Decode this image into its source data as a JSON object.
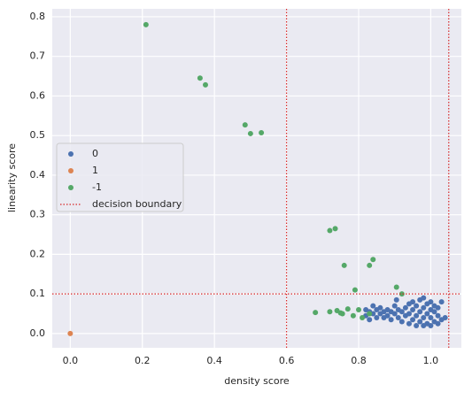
{
  "chart_data": {
    "type": "scatter",
    "xlabel": "density score",
    "ylabel": "linearity score",
    "xlim": [
      -0.05,
      1.085
    ],
    "ylim": [
      -0.036,
      0.82
    ],
    "xticks": [
      {
        "value": 0,
        "label": "0.0"
      },
      0.2,
      0.4,
      0.6,
      0.8,
      {
        "value": 1,
        "label": "1.0"
      }
    ],
    "yticks": [
      {
        "value": 0,
        "label": "0.0"
      },
      0.1,
      0.2,
      0.3,
      0.4,
      0.5,
      0.6,
      0.7,
      0.8
    ],
    "grid": true,
    "legend": "center left",
    "series": [
      {
        "name": "0",
        "color": "#4c72b0",
        "x": [
          0.82,
          0.82,
          0.83,
          0.83,
          0.84,
          0.84,
          0.85,
          0.85,
          0.86,
          0.86,
          0.87,
          0.87,
          0.88,
          0.88,
          0.89,
          0.89,
          0.9,
          0.9,
          0.91,
          0.91,
          0.92,
          0.92,
          0.93,
          0.93,
          0.94,
          0.94,
          0.94,
          0.95,
          0.95,
          0.95,
          0.96,
          0.96,
          0.96,
          0.97,
          0.97,
          0.97,
          0.98,
          0.98,
          0.98,
          0.98,
          0.99,
          0.99,
          0.99,
          1.0,
          1.0,
          1.0,
          1.0,
          1.01,
          1.01,
          1.01,
          1.02,
          1.02,
          1.02,
          1.03,
          1.03,
          1.04,
          0.905
        ],
        "y": [
          0.045,
          0.06,
          0.035,
          0.055,
          0.07,
          0.05,
          0.04,
          0.06,
          0.05,
          0.065,
          0.055,
          0.04,
          0.045,
          0.06,
          0.035,
          0.055,
          0.05,
          0.07,
          0.04,
          0.06,
          0.03,
          0.055,
          0.045,
          0.065,
          0.025,
          0.05,
          0.075,
          0.035,
          0.06,
          0.08,
          0.02,
          0.045,
          0.07,
          0.03,
          0.055,
          0.085,
          0.02,
          0.04,
          0.065,
          0.09,
          0.025,
          0.05,
          0.075,
          0.02,
          0.04,
          0.06,
          0.08,
          0.03,
          0.055,
          0.07,
          0.025,
          0.045,
          0.065,
          0.035,
          0.08,
          0.04,
          0.085
        ]
      },
      {
        "name": "1",
        "color": "#dd8452",
        "x": [
          0.0
        ],
        "y": [
          0.0
        ]
      },
      {
        "name": "-1",
        "color": "#55a868",
        "x": [
          0.21,
          0.36,
          0.375,
          0.485,
          0.5,
          0.53,
          0.72,
          0.735,
          0.76,
          0.83,
          0.84,
          0.79,
          0.905,
          0.68,
          0.72,
          0.74,
          0.75,
          0.755,
          0.77,
          0.785,
          0.8,
          0.81,
          0.83,
          0.92
        ],
        "y": [
          0.78,
          0.645,
          0.628,
          0.527,
          0.505,
          0.507,
          0.26,
          0.265,
          0.172,
          0.172,
          0.187,
          0.11,
          0.117,
          0.053,
          0.055,
          0.058,
          0.052,
          0.05,
          0.062,
          0.045,
          0.06,
          0.04,
          0.05,
          0.1
        ]
      }
    ],
    "boundary": {
      "name": "decision boundary",
      "color": "#d62728",
      "x": [
        0.6,
        1.05
      ],
      "y": [
        0.1
      ]
    }
  }
}
